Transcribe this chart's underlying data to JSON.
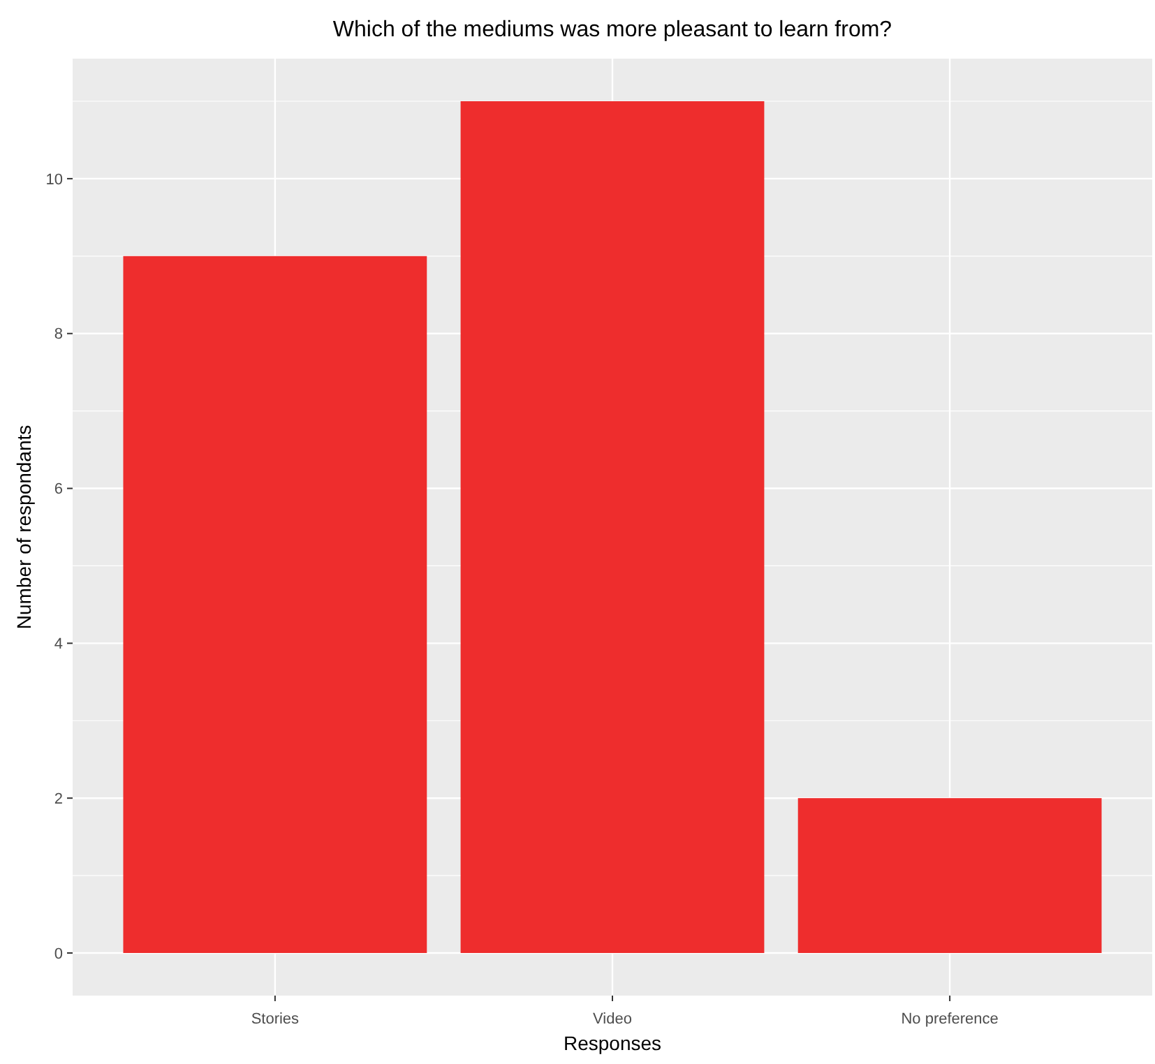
{
  "chart_data": {
    "type": "bar",
    "title": "Which of the mediums was more pleasant to learn from?",
    "xlabel": "Responses",
    "ylabel": "Number of respondants",
    "categories": [
      "Stories",
      "Video",
      "No preference"
    ],
    "values": [
      9,
      11,
      2
    ],
    "color": "#ee2d2d",
    "ylim": [
      -0.55,
      11.55
    ],
    "yticks": [
      0,
      2,
      4,
      6,
      8,
      10
    ],
    "grid": true
  }
}
